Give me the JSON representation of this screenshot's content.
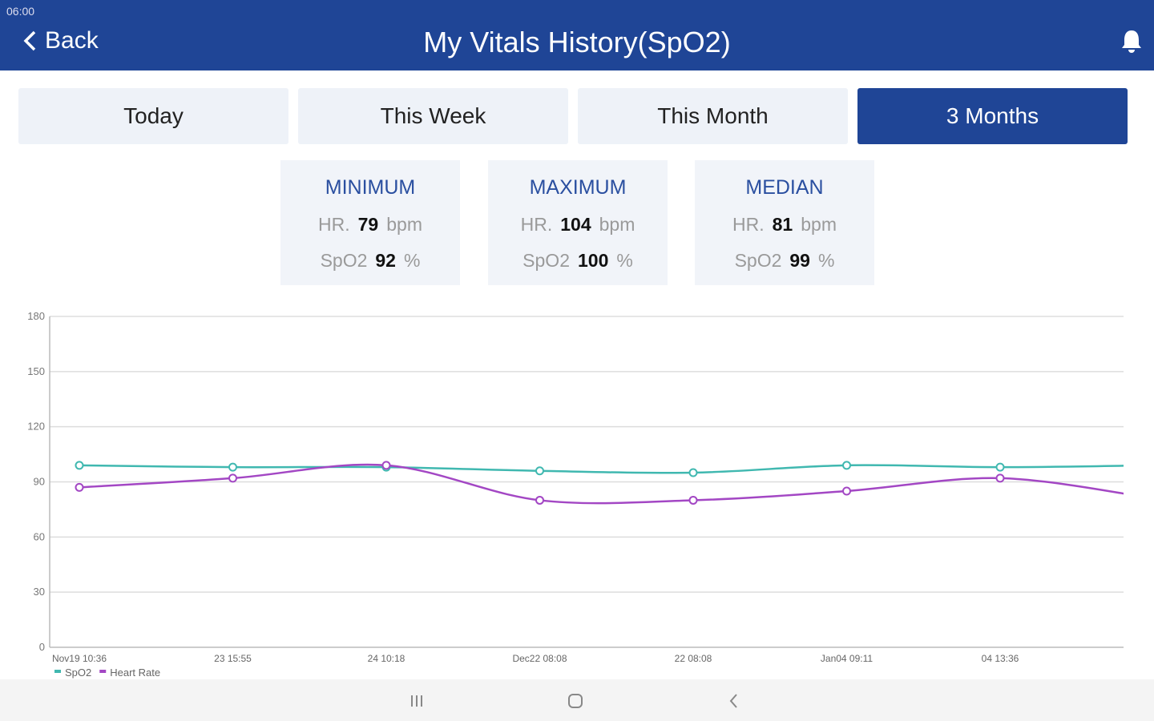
{
  "status_bar": {
    "time": "06:00"
  },
  "header": {
    "back": "Back",
    "title": "My Vitals History(SpO2)"
  },
  "tabs": [
    "Today",
    "This Week",
    "This Month",
    "3 Months"
  ],
  "active_tab": 3,
  "stats": [
    {
      "label": "MINIMUM",
      "hr_label": "HR.",
      "hr": 79,
      "hr_unit": "bpm",
      "spo2_label": "SpO2",
      "spo2": 92,
      "spo2_unit": "%"
    },
    {
      "label": "MAXIMUM",
      "hr_label": "HR.",
      "hr": 104,
      "hr_unit": "bpm",
      "spo2_label": "SpO2",
      "spo2": 100,
      "spo2_unit": "%"
    },
    {
      "label": "MEDIAN",
      "hr_label": "HR.",
      "hr": 81,
      "hr_unit": "bpm",
      "spo2_label": "SpO2",
      "spo2": 99,
      "spo2_unit": "%"
    }
  ],
  "chart_data": {
    "type": "line",
    "categories": [
      "Nov19 10:36",
      "23 15:55",
      "24 10:18",
      "Dec22 08:08",
      "22 08:08",
      "Jan04 09:11",
      "04 13:36",
      null
    ],
    "series": [
      {
        "name": "SpO2",
        "color": "#40b8b0",
        "values": [
          99,
          98,
          98,
          96,
          95,
          99,
          98,
          99
        ]
      },
      {
        "name": "Heart Rate",
        "color": "#a347c4",
        "values": [
          87,
          92,
          99,
          80,
          80,
          85,
          92,
          81
        ]
      }
    ],
    "ylim": [
      0,
      180
    ],
    "yticks": [
      0,
      30,
      60,
      90,
      120,
      150,
      180
    ],
    "grid": true
  }
}
